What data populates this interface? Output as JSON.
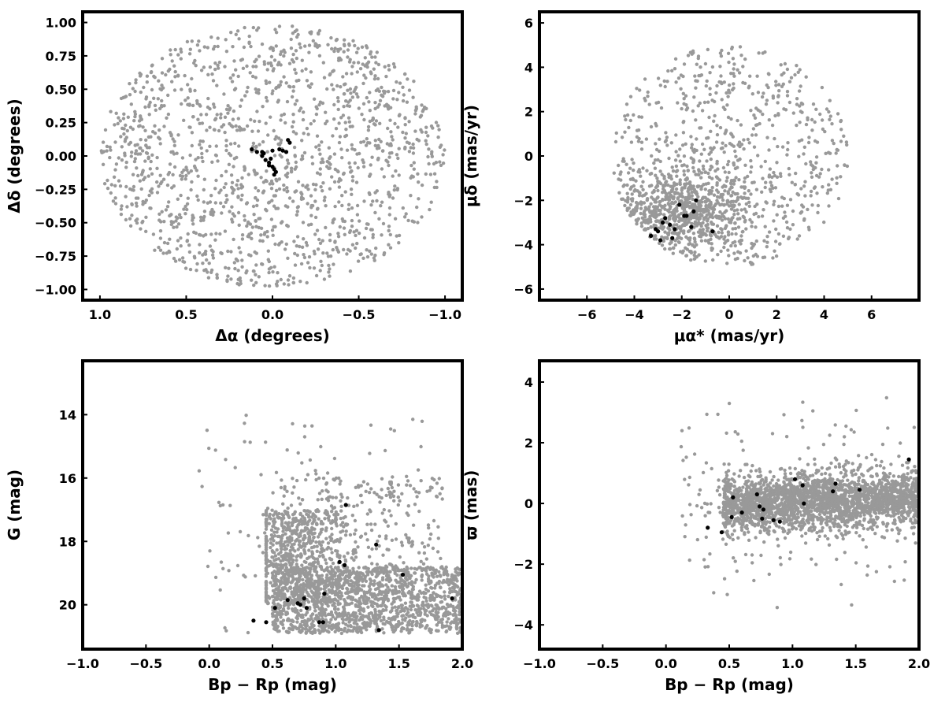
{
  "chart_data": [
    {
      "id": "sky",
      "type": "scatter",
      "xlabel": "Δα (degrees)",
      "ylabel": "Δδ (degrees)",
      "xlim": [
        1.1,
        -1.1
      ],
      "ylim": [
        -1.08,
        1.08
      ],
      "x_inverted": true,
      "xticks": [
        1.0,
        0.5,
        0.0,
        -0.5,
        -1.0
      ],
      "xtick_labels": [
        "1.0",
        "0.5",
        "0.0",
        "−0.5",
        "−1.0"
      ],
      "yticks": [
        1.0,
        0.75,
        0.5,
        0.25,
        0.0,
        -0.25,
        -0.5,
        -0.75,
        -1.0
      ],
      "ytick_labels": [
        "1.00",
        "0.75",
        "0.50",
        "0.25",
        "0.00",
        "−0.25",
        "−0.50",
        "−0.75",
        "−1.00"
      ],
      "grid": false,
      "background_points": {
        "color": "#999999",
        "distribution": "uniform disk",
        "center": [
          0,
          0
        ],
        "radius": 1.0,
        "approx_count": 1500
      },
      "member_points": {
        "color": "#000000",
        "x": [
          0.12,
          0.09,
          0.06,
          0.04,
          0.02,
          0.0,
          -0.02,
          -0.04,
          -0.06,
          -0.08,
          -0.1,
          0.05,
          0.01,
          -0.01,
          0.02,
          0.0,
          -0.01,
          0.06,
          -0.09
        ],
        "y": [
          0.05,
          0.03,
          0.0,
          -0.03,
          -0.05,
          -0.08,
          -0.12,
          0.05,
          0.04,
          0.03,
          0.1,
          0.02,
          -0.02,
          -0.14,
          -0.07,
          0.04,
          -0.1,
          0.03,
          0.12
        ]
      }
    },
    {
      "id": "proper-motion",
      "type": "scatter",
      "xlabel": "μα* (mas/yr)",
      "ylabel": "μδ (mas/yr)",
      "xlim": [
        -8,
        8
      ],
      "ylim": [
        -6.5,
        6.5
      ],
      "xticks": [
        -6,
        -4,
        -2,
        0,
        2,
        4,
        6
      ],
      "xtick_labels": [
        "−6",
        "−4",
        "−2",
        "0",
        "2",
        "4",
        "6"
      ],
      "yticks": [
        6,
        4,
        2,
        0,
        -2,
        -4,
        -6
      ],
      "ytick_labels": [
        "6",
        "4",
        "2",
        "0",
        "−2",
        "−4",
        "−6"
      ],
      "grid": false,
      "background_points": {
        "color": "#999999",
        "distribution": "disk with dense clump",
        "center": [
          0,
          0
        ],
        "radius": 5.0,
        "clump_center": [
          -2.0,
          -2.5
        ],
        "approx_count": 1500
      },
      "member_points": {
        "color": "#000000",
        "x": [
          -3.3,
          -3.0,
          -2.8,
          -2.7,
          -2.5,
          -2.3,
          -2.1,
          -1.9,
          -1.8,
          -1.6,
          -1.5,
          -1.4,
          -0.7,
          -2.9,
          -2.4,
          -3.1
        ],
        "y": [
          -3.6,
          -3.4,
          -3.0,
          -2.8,
          -3.1,
          -3.3,
          -2.2,
          -2.7,
          -2.7,
          -3.2,
          -2.5,
          -2.0,
          -3.4,
          -3.8,
          -3.7,
          -3.3
        ]
      }
    },
    {
      "id": "cmd",
      "type": "scatter",
      "xlabel": "Bp − Rp (mag)",
      "ylabel": "G (mag)",
      "xlim": [
        -1.0,
        2.0
      ],
      "ylim": [
        21.4,
        12.3
      ],
      "y_inverted": true,
      "xticks": [
        -1.0,
        -0.5,
        0.0,
        0.5,
        1.0,
        1.5,
        2.0
      ],
      "xtick_labels": [
        "−1.0",
        "−0.5",
        "0.0",
        "0.5",
        "1.0",
        "1.5",
        "2.0"
      ],
      "yticks": [
        20,
        18,
        16,
        14
      ],
      "ytick_labels": [
        "20",
        "18",
        "16",
        "14"
      ],
      "grid": false,
      "background_points": {
        "color": "#999999",
        "distribution": "field-star color-magnitude distribution",
        "approx_count": 2500
      },
      "member_points": {
        "color": "#000000",
        "x": [
          0.35,
          0.45,
          0.52,
          0.62,
          0.7,
          0.72,
          0.75,
          0.77,
          0.87,
          0.9,
          0.91,
          1.03,
          1.07,
          1.08,
          1.32,
          1.34,
          1.53,
          1.92
        ],
        "y": [
          20.5,
          20.55,
          20.1,
          19.85,
          19.95,
          20.0,
          19.8,
          20.1,
          20.55,
          20.55,
          19.65,
          18.65,
          18.75,
          16.85,
          18.1,
          20.8,
          19.05,
          19.8
        ]
      }
    },
    {
      "id": "parallax",
      "type": "scatter",
      "xlabel": "Bp − Rp (mag)",
      "ylabel": "ϖ (mas)",
      "xlim": [
        -1.0,
        2.0
      ],
      "ylim": [
        -4.8,
        4.7
      ],
      "xticks": [
        -1.0,
        -0.5,
        0.0,
        0.5,
        1.0,
        1.5,
        2.0
      ],
      "xtick_labels": [
        "−1.0",
        "−0.5",
        "0.0",
        "0.5",
        "1.0",
        "1.5",
        "2.0"
      ],
      "yticks": [
        4,
        2,
        0,
        -2,
        -4
      ],
      "ytick_labels": [
        "4",
        "2",
        "0",
        "−2",
        "−4"
      ],
      "grid": false,
      "background_points": {
        "color": "#999999",
        "distribution": "band around zero parallax",
        "approx_count": 2500
      },
      "member_points": {
        "color": "#000000",
        "x": [
          0.33,
          0.44,
          0.52,
          0.53,
          0.6,
          0.72,
          0.74,
          0.76,
          0.77,
          0.85,
          0.9,
          1.02,
          1.08,
          1.09,
          1.32,
          1.34,
          1.53,
          1.92
        ],
        "y": [
          -0.8,
          -0.95,
          -0.45,
          0.2,
          -0.3,
          0.3,
          -0.1,
          -0.5,
          -0.2,
          -0.55,
          -0.6,
          0.8,
          0.6,
          0.0,
          0.4,
          0.65,
          0.45,
          1.45
        ]
      }
    }
  ]
}
